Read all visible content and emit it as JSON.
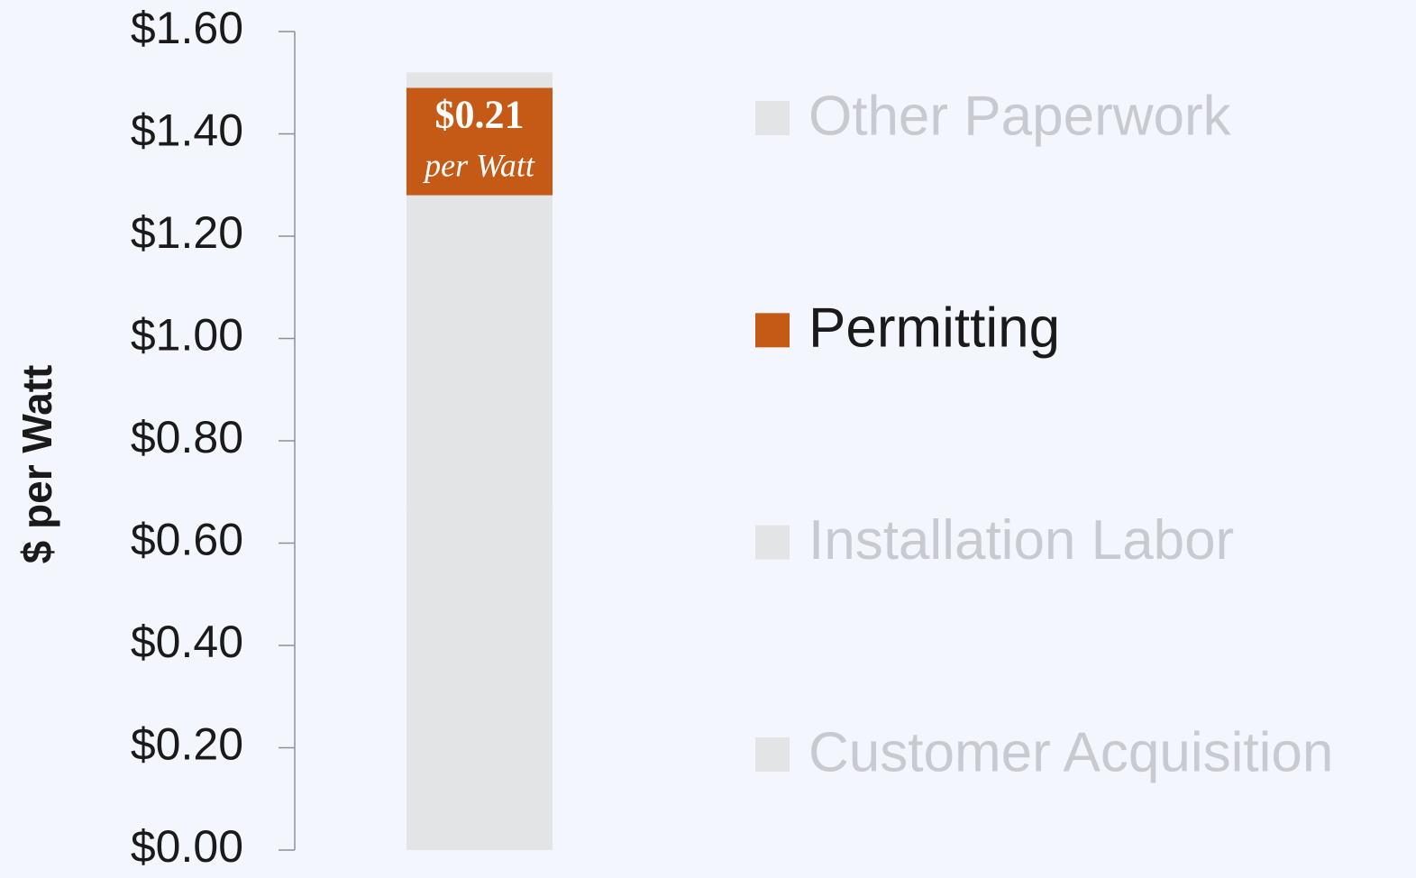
{
  "chart_data": {
    "type": "stacked_bar",
    "y_label": "$ per Watt",
    "categories": [
      null
    ],
    "series": [
      {
        "name": "Customer Acquisition",
        "color": "#e3e4e6",
        "values": [
          0.67
        ]
      },
      {
        "name": "Installation Labor",
        "color": "#e3e4e6",
        "values": [
          0.61
        ]
      },
      {
        "name": "Permitting",
        "color": "#c55a17",
        "values": [
          0.21
        ],
        "value_labels": [
          "$0.21"
        ],
        "highlight": true
      },
      {
        "name": "Other Paperwork",
        "color": "#e3e4e6",
        "values": [
          0.03
        ]
      }
    ],
    "annotation": "per Watt",
    "ylim": [
      0,
      1.6
    ],
    "yticks": [
      {
        "value": 0,
        "label": "$0.00"
      },
      {
        "value": 0.2,
        "label": "$0.20"
      },
      {
        "value": 0.4,
        "label": "$0.40"
      },
      {
        "value": 0.6,
        "label": "$0.60"
      },
      {
        "value": 0.8,
        "label": "$0.80"
      },
      {
        "value": 1.0,
        "label": "$1.00"
      },
      {
        "value": 1.2,
        "label": "$1.20"
      },
      {
        "value": 1.4,
        "label": "$1.40"
      },
      {
        "value": 1.6,
        "label": "$1.60"
      }
    ],
    "legend": "right"
  }
}
